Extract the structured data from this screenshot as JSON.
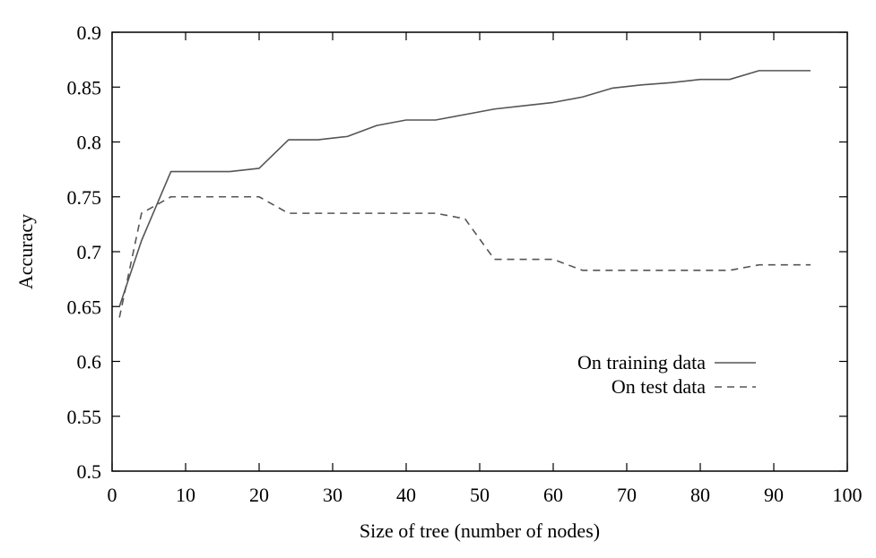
{
  "chart_data": {
    "type": "line",
    "xlabel": "Size of tree (number of nodes)",
    "ylabel": "Accuracy",
    "xlim": [
      0,
      100
    ],
    "ylim": [
      0.5,
      0.9
    ],
    "xticks": [
      0,
      10,
      20,
      30,
      40,
      50,
      60,
      70,
      80,
      90,
      100
    ],
    "yticks": [
      0.5,
      0.55,
      0.6,
      0.65,
      0.7,
      0.75,
      0.8,
      0.85,
      0.9
    ],
    "xtick_labels": [
      "0",
      "10",
      "20",
      "30",
      "40",
      "50",
      "60",
      "70",
      "80",
      "90",
      "100"
    ],
    "ytick_labels": [
      "0.5",
      "0.55",
      "0.6",
      "0.65",
      "0.7",
      "0.75",
      "0.8",
      "0.85",
      "0.9"
    ],
    "grid": false,
    "legend_position": "bottom-right",
    "series": [
      {
        "name": "On training data",
        "style": "solid",
        "color": "#555555",
        "x": [
          1,
          4,
          8,
          12,
          16,
          20,
          24,
          28,
          32,
          36,
          40,
          44,
          48,
          52,
          56,
          60,
          64,
          68,
          72,
          76,
          80,
          84,
          88,
          92,
          95
        ],
        "y": [
          0.65,
          0.71,
          0.773,
          0.773,
          0.773,
          0.776,
          0.802,
          0.802,
          0.805,
          0.815,
          0.82,
          0.82,
          0.825,
          0.83,
          0.833,
          0.836,
          0.841,
          0.849,
          0.852,
          0.854,
          0.857,
          0.857,
          0.865,
          0.865,
          0.865
        ]
      },
      {
        "name": "On test data",
        "style": "dashed",
        "color": "#555555",
        "x": [
          1,
          4,
          8,
          12,
          16,
          20,
          24,
          28,
          32,
          36,
          40,
          44,
          48,
          52,
          56,
          60,
          64,
          68,
          72,
          76,
          80,
          84,
          88,
          92,
          95
        ],
        "y": [
          0.64,
          0.735,
          0.75,
          0.75,
          0.75,
          0.75,
          0.735,
          0.735,
          0.735,
          0.735,
          0.735,
          0.735,
          0.73,
          0.693,
          0.693,
          0.693,
          0.683,
          0.683,
          0.683,
          0.683,
          0.683,
          0.683,
          0.688,
          0.688,
          0.688
        ]
      }
    ]
  }
}
